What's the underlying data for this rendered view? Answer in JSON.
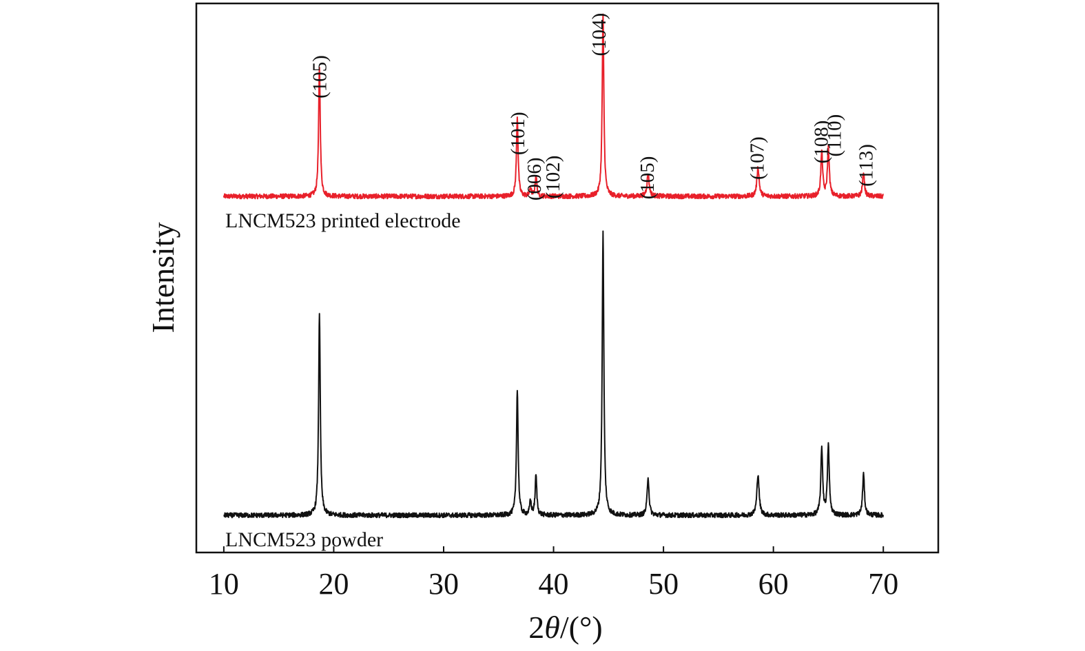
{
  "chart_data": {
    "type": "line",
    "xlabel_prefix": "2",
    "xlabel_symbol": "θ",
    "xlabel_suffix": "/(°)",
    "ylabel": "Intensity",
    "xlim": [
      7.5,
      75
    ],
    "xticks": [
      10,
      20,
      30,
      40,
      50,
      60,
      70
    ],
    "grid": false,
    "colors": {
      "electrode": "#e8202a",
      "powder": "#111111",
      "axis": "#111111"
    },
    "series": [
      {
        "key": "electrode",
        "name": "LNCM523 printed electrode",
        "x_range": [
          10,
          70
        ],
        "baseline": 285,
        "peaks": [
          {
            "x": 18.7,
            "h": 188,
            "w": 0.09
          },
          {
            "x": 36.7,
            "h": 115,
            "w": 0.09
          },
          {
            "x": 37.9,
            "h": 12,
            "w": 0.09
          },
          {
            "x": 38.4,
            "h": 30,
            "w": 0.09
          },
          {
            "x": 44.5,
            "h": 262,
            "w": 0.09
          },
          {
            "x": 48.6,
            "h": 32,
            "w": 0.12
          },
          {
            "x": 58.6,
            "h": 42,
            "w": 0.12
          },
          {
            "x": 64.4,
            "h": 64,
            "w": 0.1
          },
          {
            "x": 65.0,
            "h": 70,
            "w": 0.1
          },
          {
            "x": 68.2,
            "h": 35,
            "w": 0.1
          }
        ]
      },
      {
        "key": "powder",
        "name": "LNCM523 powder",
        "x_range": [
          10,
          70
        ],
        "baseline": 748,
        "peaks": [
          {
            "x": 18.7,
            "h": 295,
            "w": 0.09
          },
          {
            "x": 36.7,
            "h": 183,
            "w": 0.09
          },
          {
            "x": 37.9,
            "h": 20,
            "w": 0.09
          },
          {
            "x": 38.4,
            "h": 58,
            "w": 0.09
          },
          {
            "x": 44.5,
            "h": 410,
            "w": 0.09
          },
          {
            "x": 48.6,
            "h": 56,
            "w": 0.1
          },
          {
            "x": 58.6,
            "h": 60,
            "w": 0.12
          },
          {
            "x": 64.4,
            "h": 97,
            "w": 0.1
          },
          {
            "x": 65.0,
            "h": 101,
            "w": 0.1
          },
          {
            "x": 68.2,
            "h": 60,
            "w": 0.1
          }
        ]
      }
    ],
    "peak_labels": [
      {
        "x": 18.7,
        "label": "(105)",
        "y_frac": 0.118
      },
      {
        "x": 36.7,
        "label": "(101)",
        "y_frac": 0.205
      },
      {
        "x": 38.2,
        "label": "(006)",
        "y_frac": 0.275
      },
      {
        "x": 39.9,
        "label": "(102)",
        "y_frac": 0.272
      },
      {
        "x": 44.1,
        "label": "(104)",
        "y_frac": 0.053
      },
      {
        "x": 48.5,
        "label": "(105)",
        "y_frac": 0.273
      },
      {
        "x": 58.5,
        "label": "(107)",
        "y_frac": 0.243
      },
      {
        "x": 64.3,
        "label": "(108)",
        "y_frac": 0.218
      },
      {
        "x": 65.5,
        "label": "(110)",
        "y_frac": 0.208
      },
      {
        "x": 68.4,
        "label": "(113)",
        "y_frac": 0.254
      }
    ]
  }
}
